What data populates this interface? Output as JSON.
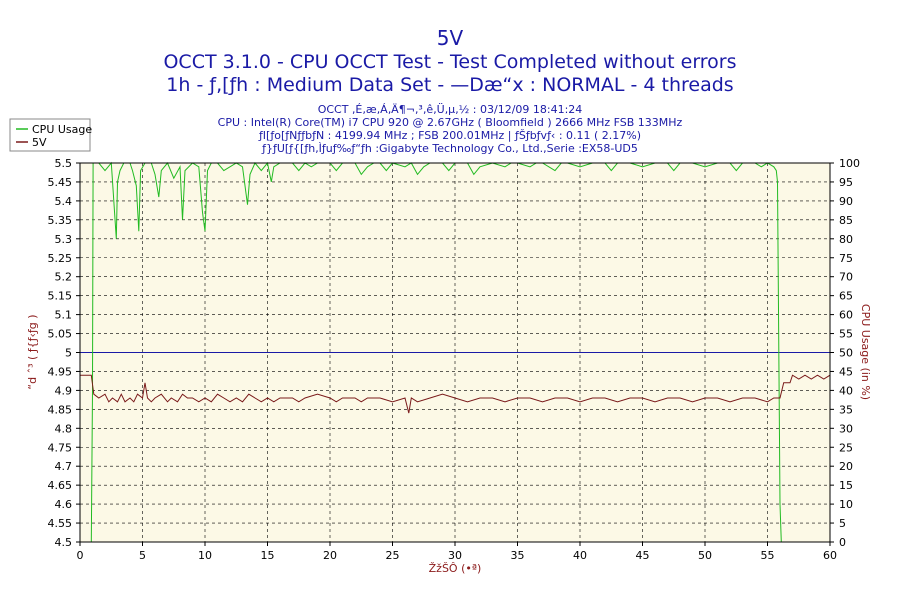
{
  "chart_data": {
    "type": "line",
    "title": "5V",
    "subtitle1": "OCCT 3.1.0 - CPU OCCT Test - Test Completed without errors",
    "subtitle2": "1h - ƒ‚[ƒh : Medium Data Set - —Dæ“x : NORMAL - 4 threads",
    "info": [
      "OCCT ‚É‚æ‚Á‚Ä¶¬‚³‚ê‚Ü‚µ‚½ : 03/12/09 18:41:24",
      "CPU : Intel(R) Core(TM) i7 CPU 920 @ 2.67GHz ( Bloomfield ) 2666 MHz FSB 133MHz",
      "ƒI[ƒo[ƒNƒƒbƒN : 4199.94 MHz ; FSB 200.01MHz | ƒŠƒbƒvƒ‹ : 0.11 ( 2.17%)",
      "ƒ}ƒU[ƒ{[ƒh‚Ìƒuƒ‰ƒ“ƒh :Gigabyte Technology Co., Ltd.,Serie :EX58-UD5"
    ],
    "xlabel": "ŽžŠÔ (•ª)",
    "ylabel_left": "“d ˆ³ ( ƒ{ƒ‹ƒg )",
    "ylabel_right": "CPU Usage (in %)",
    "xlim": [
      0,
      60
    ],
    "ylim_left": [
      4.5,
      5.5
    ],
    "ylim_right": [
      0,
      100
    ],
    "x_ticks": [
      "0",
      "5",
      "10",
      "15",
      "20",
      "25",
      "30",
      "35",
      "40",
      "45",
      "50",
      "55",
      "60"
    ],
    "y_ticks_left": [
      "4.5",
      "4.55",
      "4.6",
      "4.65",
      "4.7",
      "4.75",
      "4.8",
      "4.85",
      "4.9",
      "4.95",
      "5",
      "5.05",
      "5.1",
      "5.15",
      "5.2",
      "5.25",
      "5.3",
      "5.35",
      "5.4",
      "5.45",
      "5.5"
    ],
    "y_ticks_right": [
      "0",
      "5",
      "10",
      "15",
      "20",
      "25",
      "30",
      "35",
      "40",
      "45",
      "50",
      "55",
      "60",
      "65",
      "70",
      "75",
      "80",
      "85",
      "90",
      "95",
      "100"
    ],
    "grid": true,
    "legend_position": "top-left",
    "reference_line": {
      "y": 5.0,
      "color": "#1a1aa6"
    },
    "background_color": "#fcf9e6",
    "series": [
      {
        "name": "CPU Usage",
        "axis": "right",
        "color": "#22bb22",
        "points": [
          [
            0,
            0
          ],
          [
            0.5,
            0
          ],
          [
            0.9,
            0
          ],
          [
            1.0,
            40
          ],
          [
            1.05,
            100
          ],
          [
            1.5,
            100
          ],
          [
            2.0,
            98
          ],
          [
            2.5,
            100
          ],
          [
            2.9,
            80
          ],
          [
            3.0,
            95
          ],
          [
            3.2,
            98
          ],
          [
            3.5,
            100
          ],
          [
            4.0,
            100
          ],
          [
            4.2,
            98
          ],
          [
            4.5,
            94
          ],
          [
            4.7,
            82
          ],
          [
            4.85,
            98
          ],
          [
            5.2,
            100
          ],
          [
            5.7,
            100
          ],
          [
            6.0,
            97
          ],
          [
            6.3,
            91
          ],
          [
            6.5,
            98
          ],
          [
            7.0,
            100
          ],
          [
            7.5,
            96
          ],
          [
            8.0,
            99
          ],
          [
            8.2,
            85
          ],
          [
            8.4,
            98
          ],
          [
            9.0,
            100
          ],
          [
            9.5,
            99
          ],
          [
            9.8,
            87
          ],
          [
            10.0,
            82
          ],
          [
            10.2,
            98
          ],
          [
            10.5,
            100
          ],
          [
            11.0,
            100
          ],
          [
            11.5,
            98
          ],
          [
            12.0,
            99
          ],
          [
            12.5,
            100
          ],
          [
            13.0,
            99
          ],
          [
            13.4,
            89
          ],
          [
            13.6,
            97
          ],
          [
            14.0,
            100
          ],
          [
            14.5,
            98
          ],
          [
            15.0,
            100
          ],
          [
            15.3,
            95
          ],
          [
            15.5,
            99
          ],
          [
            16.0,
            100
          ],
          [
            17.0,
            100
          ],
          [
            17.5,
            98
          ],
          [
            18.0,
            100
          ],
          [
            18.5,
            99
          ],
          [
            19.0,
            100
          ],
          [
            20.0,
            100
          ],
          [
            20.5,
            98
          ],
          [
            21.0,
            100
          ],
          [
            22.0,
            100
          ],
          [
            22.5,
            97
          ],
          [
            23.0,
            99
          ],
          [
            23.5,
            100
          ],
          [
            24.0,
            100
          ],
          [
            24.5,
            98
          ],
          [
            25.0,
            100
          ],
          [
            26.0,
            99
          ],
          [
            26.5,
            100
          ],
          [
            27.0,
            97
          ],
          [
            27.5,
            99
          ],
          [
            28.0,
            100
          ],
          [
            29.0,
            100
          ],
          [
            29.5,
            98
          ],
          [
            30.0,
            100
          ],
          [
            31.0,
            100
          ],
          [
            31.5,
            97
          ],
          [
            32.0,
            99
          ],
          [
            33.0,
            100
          ],
          [
            34.0,
            99
          ],
          [
            34.5,
            100
          ],
          [
            35.0,
            100
          ],
          [
            36.0,
            99
          ],
          [
            36.5,
            100
          ],
          [
            37.0,
            100
          ],
          [
            38.0,
            98
          ],
          [
            38.5,
            100
          ],
          [
            39.0,
            100
          ],
          [
            40.0,
            99
          ],
          [
            41.0,
            100
          ],
          [
            42.0,
            100
          ],
          [
            42.5,
            98
          ],
          [
            43.0,
            100
          ],
          [
            44.0,
            100
          ],
          [
            45.0,
            99
          ],
          [
            46.0,
            100
          ],
          [
            47.0,
            100
          ],
          [
            47.5,
            98
          ],
          [
            48.0,
            100
          ],
          [
            49.0,
            100
          ],
          [
            50.0,
            99
          ],
          [
            51.0,
            100
          ],
          [
            52.0,
            100
          ],
          [
            52.5,
            98
          ],
          [
            53.0,
            100
          ],
          [
            54.0,
            100
          ],
          [
            54.5,
            99
          ],
          [
            55.0,
            100
          ],
          [
            55.5,
            99
          ],
          [
            55.7,
            98
          ],
          [
            55.8,
            95
          ],
          [
            56.0,
            10
          ],
          [
            56.1,
            0
          ],
          [
            60,
            0
          ]
        ]
      },
      {
        "name": "5V",
        "axis": "left",
        "color": "#7a1a1a",
        "points": [
          [
            0,
            4.94
          ],
          [
            0.9,
            4.94
          ],
          [
            1.1,
            4.89
          ],
          [
            1.5,
            4.88
          ],
          [
            2.0,
            4.89
          ],
          [
            2.3,
            4.87
          ],
          [
            2.6,
            4.88
          ],
          [
            3.0,
            4.87
          ],
          [
            3.3,
            4.89
          ],
          [
            3.6,
            4.87
          ],
          [
            4.0,
            4.88
          ],
          [
            4.3,
            4.87
          ],
          [
            4.6,
            4.89
          ],
          [
            5.0,
            4.88
          ],
          [
            5.2,
            4.92
          ],
          [
            5.4,
            4.88
          ],
          [
            5.7,
            4.87
          ],
          [
            6.0,
            4.88
          ],
          [
            6.5,
            4.89
          ],
          [
            7.0,
            4.87
          ],
          [
            7.3,
            4.88
          ],
          [
            7.8,
            4.87
          ],
          [
            8.2,
            4.89
          ],
          [
            8.6,
            4.88
          ],
          [
            9.0,
            4.88
          ],
          [
            9.5,
            4.87
          ],
          [
            10.0,
            4.88
          ],
          [
            10.5,
            4.87
          ],
          [
            11.0,
            4.89
          ],
          [
            11.5,
            4.88
          ],
          [
            12.0,
            4.87
          ],
          [
            12.5,
            4.88
          ],
          [
            13.0,
            4.87
          ],
          [
            13.5,
            4.89
          ],
          [
            14.0,
            4.88
          ],
          [
            14.5,
            4.87
          ],
          [
            15.0,
            4.88
          ],
          [
            15.5,
            4.87
          ],
          [
            16.0,
            4.88
          ],
          [
            17.0,
            4.88
          ],
          [
            17.5,
            4.87
          ],
          [
            18.0,
            4.88
          ],
          [
            19.0,
            4.89
          ],
          [
            20.0,
            4.88
          ],
          [
            20.5,
            4.87
          ],
          [
            21.0,
            4.88
          ],
          [
            22.0,
            4.88
          ],
          [
            22.5,
            4.87
          ],
          [
            23.0,
            4.88
          ],
          [
            24.0,
            4.88
          ],
          [
            25.0,
            4.87
          ],
          [
            26.0,
            4.88
          ],
          [
            26.3,
            4.84
          ],
          [
            26.5,
            4.88
          ],
          [
            27.0,
            4.87
          ],
          [
            28.0,
            4.88
          ],
          [
            29.0,
            4.89
          ],
          [
            30.0,
            4.88
          ],
          [
            31.0,
            4.87
          ],
          [
            32.0,
            4.88
          ],
          [
            33.0,
            4.88
          ],
          [
            34.0,
            4.87
          ],
          [
            35.0,
            4.88
          ],
          [
            36.0,
            4.88
          ],
          [
            37.0,
            4.87
          ],
          [
            38.0,
            4.88
          ],
          [
            39.0,
            4.88
          ],
          [
            40.0,
            4.87
          ],
          [
            41.0,
            4.88
          ],
          [
            42.0,
            4.88
          ],
          [
            43.0,
            4.87
          ],
          [
            44.0,
            4.88
          ],
          [
            45.0,
            4.88
          ],
          [
            46.0,
            4.87
          ],
          [
            47.0,
            4.88
          ],
          [
            48.0,
            4.88
          ],
          [
            49.0,
            4.87
          ],
          [
            50.0,
            4.88
          ],
          [
            51.0,
            4.88
          ],
          [
            52.0,
            4.87
          ],
          [
            53.0,
            4.88
          ],
          [
            54.0,
            4.88
          ],
          [
            55.0,
            4.87
          ],
          [
            55.5,
            4.88
          ],
          [
            56.0,
            4.88
          ],
          [
            56.3,
            4.92
          ],
          [
            56.8,
            4.92
          ],
          [
            57.0,
            4.94
          ],
          [
            57.5,
            4.93
          ],
          [
            58.0,
            4.94
          ],
          [
            58.5,
            4.93
          ],
          [
            59.0,
            4.94
          ],
          [
            59.5,
            4.93
          ],
          [
            60,
            4.94
          ]
        ]
      }
    ]
  }
}
